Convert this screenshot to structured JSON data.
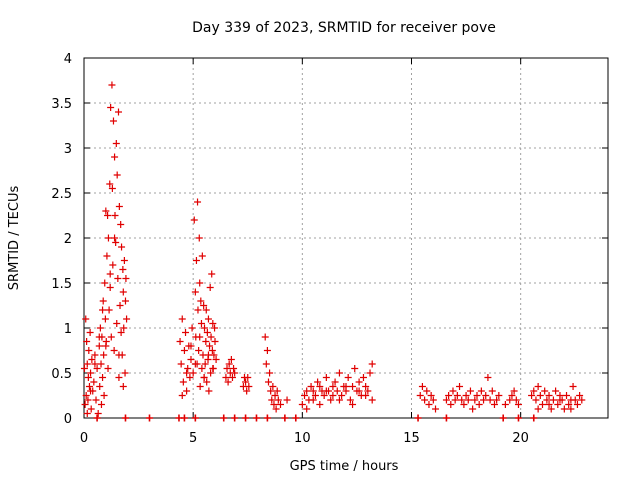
{
  "chart_data": {
    "type": "scatter",
    "title": "Day 339 of 2023, SRMTID for receiver pove",
    "xlabel": "GPS time / hours",
    "ylabel": "SRMTID / TECUs",
    "xlim": [
      0,
      24
    ],
    "ylim": [
      0,
      4
    ],
    "x_ticks": [
      0,
      5,
      10,
      15,
      20
    ],
    "x_tick_labels": [
      "0",
      "5",
      "10",
      "15",
      "20"
    ],
    "y_ticks": [
      0,
      0.5,
      1,
      1.5,
      2,
      2.5,
      3,
      3.5,
      4
    ],
    "y_tick_labels": [
      "0",
      "0.5",
      "1",
      "1.5",
      "2",
      "2.5",
      "3",
      "3.5",
      "4"
    ],
    "grid": true,
    "marker": "+",
    "color": "#e00000",
    "series": [
      {
        "name": "SRMTID",
        "x": [
          0.02,
          0.05,
          0.08,
          0.1,
          0.12,
          0.15,
          0.18,
          0.2,
          0.22,
          0.25,
          0.28,
          0.3,
          0.33,
          0.36,
          0.4,
          0.45,
          0.5,
          0.55,
          0.6,
          0.65,
          0.7,
          0.72,
          0.75,
          0.78,
          0.8,
          0.82,
          0.85,
          0.88,
          0.9,
          0.92,
          0.95,
          0.98,
          1.0,
          1.02,
          1.05,
          1.08,
          1.1,
          1.12,
          1.15,
          1.18,
          1.2,
          1.22,
          1.25,
          1.28,
          1.3,
          1.32,
          1.35,
          1.38,
          1.4,
          1.42,
          1.45,
          1.48,
          1.5,
          1.52,
          1.55,
          1.58,
          1.6,
          1.62,
          1.65,
          1.68,
          1.7,
          1.72,
          1.75,
          1.78,
          1.8,
          1.82,
          1.85,
          1.88,
          1.9,
          1.92,
          1.95,
          0.15,
          0.3,
          0.5,
          0.7,
          0.85,
          1.0,
          1.2,
          1.4,
          1.6,
          1.8,
          4.4,
          4.45,
          4.5,
          4.55,
          4.6,
          4.65,
          4.7,
          4.75,
          4.8,
          4.85,
          4.9,
          4.95,
          5.0,
          5.05,
          5.1,
          5.12,
          5.15,
          5.18,
          5.2,
          5.22,
          5.25,
          5.28,
          5.3,
          5.32,
          5.35,
          5.38,
          5.4,
          5.42,
          5.45,
          5.48,
          5.5,
          5.52,
          5.55,
          5.58,
          5.6,
          5.62,
          5.65,
          5.68,
          5.7,
          5.72,
          5.75,
          5.78,
          5.8,
          5.82,
          5.85,
          5.88,
          5.9,
          5.92,
          5.95,
          5.98,
          6.0,
          6.05,
          4.5,
          4.7,
          4.9,
          5.1,
          5.3,
          5.5,
          5.7,
          5.9,
          6.5,
          6.55,
          6.6,
          6.65,
          6.7,
          6.75,
          6.8,
          6.85,
          6.9,
          7.3,
          7.35,
          7.4,
          7.45,
          7.5,
          7.55,
          8.3,
          8.35,
          8.4,
          8.45,
          8.5,
          8.55,
          8.6,
          8.65,
          8.7,
          8.75,
          8.8,
          8.85,
          8.9,
          9.0,
          9.3,
          10.0,
          10.1,
          10.2,
          10.3,
          10.4,
          10.5,
          10.6,
          10.7,
          10.8,
          10.9,
          11.0,
          11.1,
          11.2,
          11.3,
          11.4,
          11.5,
          11.6,
          11.7,
          11.8,
          11.9,
          12.0,
          12.1,
          12.2,
          12.3,
          12.4,
          12.5,
          12.6,
          12.7,
          12.8,
          12.9,
          13.0,
          13.1,
          13.2,
          10.2,
          10.5,
          10.8,
          11.1,
          11.4,
          11.7,
          12.0,
          12.3,
          12.6,
          12.9,
          13.2,
          15.4,
          15.5,
          15.6,
          15.7,
          15.8,
          15.9,
          16.0,
          16.1,
          16.6,
          16.7,
          16.8,
          16.9,
          17.0,
          17.1,
          17.2,
          17.3,
          17.4,
          17.5,
          17.6,
          17.7,
          17.8,
          17.9,
          18.0,
          18.1,
          18.2,
          18.3,
          18.4,
          18.5,
          18.6,
          18.7,
          18.8,
          18.9,
          19.0,
          19.3,
          19.5,
          19.6,
          19.7,
          19.8,
          19.9,
          20.5,
          20.6,
          20.7,
          20.8,
          20.9,
          21.0,
          21.1,
          21.2,
          21.3,
          21.4,
          21.5,
          21.6,
          21.7,
          21.8,
          21.9,
          22.0,
          22.1,
          22.2,
          22.3,
          22.4,
          22.5,
          22.6,
          22.7,
          22.8,
          20.8,
          21.3,
          21.8,
          22.3
        ],
        "y": [
          0.55,
          0.15,
          1.1,
          0.25,
          0.85,
          0.6,
          0.2,
          0.45,
          0.75,
          0.35,
          0.95,
          0.5,
          0.1,
          0.65,
          0.3,
          0.4,
          0.7,
          0.2,
          0.55,
          0.05,
          0.8,
          0.35,
          1.0,
          0.6,
          0.15,
          0.9,
          0.45,
          1.3,
          0.7,
          0.25,
          1.5,
          1.1,
          2.3,
          0.85,
          1.8,
          2.25,
          0.55,
          2.0,
          1.2,
          2.6,
          1.45,
          3.45,
          0.9,
          3.7,
          2.55,
          1.7,
          3.3,
          0.75,
          2.9,
          2.25,
          1.95,
          3.05,
          1.05,
          2.7,
          1.55,
          3.4,
          0.45,
          2.35,
          1.25,
          2.15,
          0.95,
          1.9,
          0.7,
          1.65,
          1.4,
          1.0,
          1.75,
          0.5,
          1.3,
          1.55,
          1.1,
          0.05,
          0.3,
          0.6,
          0.9,
          1.2,
          0.8,
          1.6,
          2.0,
          0.7,
          0.35,
          0.85,
          0.6,
          1.1,
          0.4,
          0.75,
          0.95,
          0.3,
          0.55,
          0.8,
          0.45,
          0.65,
          1.0,
          0.5,
          2.2,
          1.4,
          0.9,
          1.75,
          0.6,
          2.4,
          1.2,
          0.75,
          2.0,
          1.5,
          0.35,
          1.3,
          1.05,
          0.55,
          1.8,
          0.7,
          1.25,
          0.45,
          1.0,
          0.6,
          0.85,
          1.2,
          0.4,
          0.95,
          0.65,
          1.1,
          0.3,
          0.8,
          1.45,
          0.5,
          0.9,
          1.6,
          0.75,
          1.05,
          0.55,
          0.7,
          1.0,
          0.85,
          0.65,
          0.25,
          0.5,
          0.8,
          0.6,
          0.9,
          0.45,
          0.7,
          0.55,
          0.45,
          0.55,
          0.4,
          0.6,
          0.5,
          0.65,
          0.45,
          0.55,
          0.5,
          0.35,
          0.45,
          0.4,
          0.3,
          0.45,
          0.35,
          0.9,
          0.6,
          0.75,
          0.4,
          0.5,
          0.3,
          0.2,
          0.35,
          0.15,
          0.25,
          0.1,
          0.3,
          0.2,
          0.15,
          0.2,
          0.15,
          0.25,
          0.3,
          0.2,
          0.35,
          0.3,
          0.25,
          0.4,
          0.35,
          0.3,
          0.25,
          0.45,
          0.3,
          0.2,
          0.35,
          0.4,
          0.3,
          0.5,
          0.25,
          0.35,
          0.3,
          0.45,
          0.2,
          0.35,
          0.55,
          0.3,
          0.4,
          0.25,
          0.45,
          0.35,
          0.3,
          0.5,
          0.6,
          0.1,
          0.2,
          0.15,
          0.3,
          0.25,
          0.2,
          0.35,
          0.15,
          0.3,
          0.25,
          0.2,
          0.25,
          0.35,
          0.2,
          0.3,
          0.15,
          0.25,
          0.2,
          0.1,
          0.2,
          0.25,
          0.15,
          0.3,
          0.2,
          0.25,
          0.35,
          0.2,
          0.15,
          0.25,
          0.2,
          0.3,
          0.1,
          0.2,
          0.25,
          0.15,
          0.3,
          0.2,
          0.25,
          0.45,
          0.2,
          0.3,
          0.15,
          0.2,
          0.25,
          0.15,
          0.2,
          0.25,
          0.3,
          0.2,
          0.15,
          0.25,
          0.3,
          0.2,
          0.35,
          0.25,
          0.15,
          0.3,
          0.2,
          0.25,
          0.1,
          0.2,
          0.3,
          0.15,
          0.25,
          0.2,
          0.1,
          0.25,
          0.15,
          0.2,
          0.35,
          0.2,
          0.15,
          0.25,
          0.2,
          0.1,
          0.15,
          0.2,
          0.1
        ],
        "zero_x": [
          0.6,
          1.9,
          3.0,
          4.35,
          4.6,
          5.1,
          6.4,
          6.9,
          7.4,
          7.9,
          8.4,
          9.2,
          9.7,
          15.3,
          16.6,
          19.2,
          19.9,
          20.6
        ]
      }
    ]
  }
}
